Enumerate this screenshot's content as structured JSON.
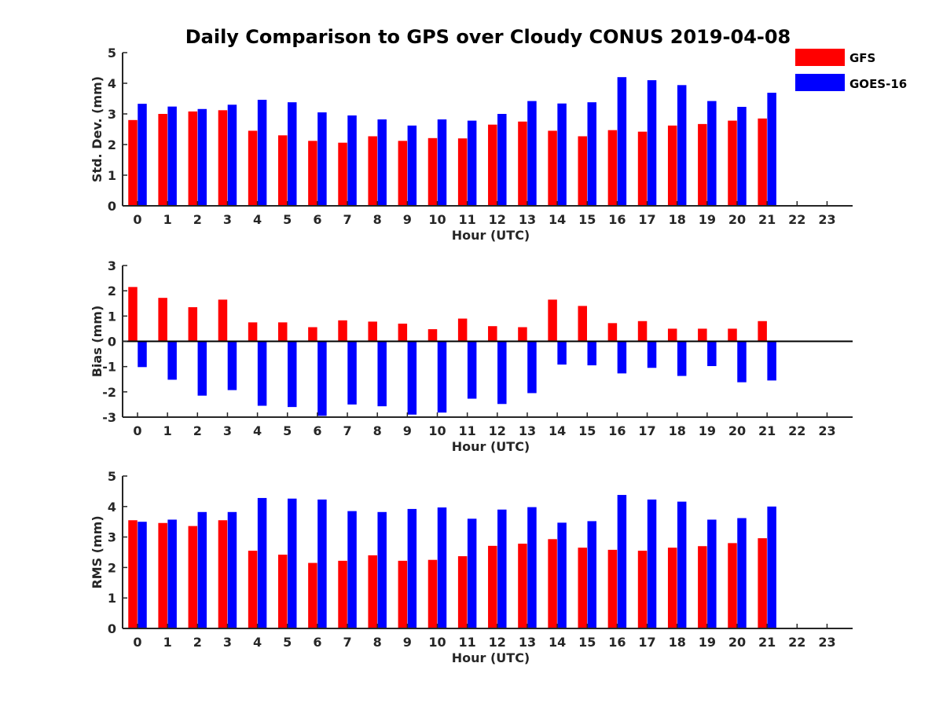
{
  "title": "Daily Comparison to GPS over Cloudy CONUS 2019-04-08",
  "colors": {
    "GFS": "#ff0000",
    "GOES-16": "#0000ff",
    "axis": "#262626"
  },
  "legend": {
    "placement": "top-right",
    "items": [
      "GFS",
      "GOES-16"
    ]
  },
  "chart_data": [
    {
      "type": "bar",
      "xlabel": "Hour (UTC)",
      "ylabel": "Std. Dev. (mm)",
      "ylim": [
        0,
        5
      ],
      "yticks": [
        0,
        1,
        2,
        3,
        4,
        5
      ],
      "categories": [
        "0",
        "1",
        "2",
        "3",
        "4",
        "5",
        "6",
        "7",
        "8",
        "9",
        "10",
        "11",
        "12",
        "13",
        "14",
        "15",
        "16",
        "17",
        "18",
        "19",
        "20",
        "21",
        "22",
        "23"
      ],
      "series": [
        {
          "name": "GFS",
          "values": [
            2.8,
            3.0,
            3.08,
            3.12,
            2.45,
            2.3,
            2.12,
            2.06,
            2.27,
            2.12,
            2.21,
            2.2,
            2.65,
            2.75,
            2.45,
            2.27,
            2.47,
            2.42,
            2.62,
            2.67,
            2.78,
            2.85,
            null,
            null
          ]
        },
        {
          "name": "GOES-16",
          "values": [
            3.33,
            3.24,
            3.16,
            3.3,
            3.46,
            3.38,
            3.05,
            2.95,
            2.82,
            2.62,
            2.82,
            2.78,
            3.0,
            3.42,
            3.34,
            3.38,
            4.2,
            4.1,
            3.94,
            3.42,
            3.23,
            3.69,
            null,
            null
          ]
        }
      ]
    },
    {
      "type": "bar",
      "xlabel": "Hour (UTC)",
      "ylabel": "Bias (mm)",
      "ylim": [
        -3,
        3
      ],
      "yticks": [
        -3,
        -2,
        -1,
        0,
        1,
        2,
        3
      ],
      "categories": [
        "0",
        "1",
        "2",
        "3",
        "4",
        "5",
        "6",
        "7",
        "8",
        "9",
        "10",
        "11",
        "12",
        "13",
        "14",
        "15",
        "16",
        "17",
        "18",
        "19",
        "20",
        "21",
        "22",
        "23"
      ],
      "series": [
        {
          "name": "GFS",
          "values": [
            2.15,
            1.72,
            1.35,
            1.65,
            0.75,
            0.75,
            0.56,
            0.83,
            0.78,
            0.7,
            0.48,
            0.9,
            0.6,
            0.56,
            1.65,
            1.4,
            0.72,
            0.8,
            0.5,
            0.5,
            0.5,
            0.8,
            null,
            null
          ]
        },
        {
          "name": "GOES-16",
          "values": [
            -1.02,
            -1.52,
            -2.15,
            -1.93,
            -2.55,
            -2.6,
            -2.95,
            -2.5,
            -2.57,
            -2.9,
            -2.82,
            -2.27,
            -2.48,
            -2.05,
            -0.92,
            -0.95,
            -1.27,
            -1.05,
            -1.37,
            -0.98,
            -1.62,
            -1.55,
            null,
            null
          ]
        }
      ]
    },
    {
      "type": "bar",
      "xlabel": "Hour (UTC)",
      "ylabel": "RMS (mm)",
      "ylim": [
        0,
        5
      ],
      "yticks": [
        0,
        1,
        2,
        3,
        4,
        5
      ],
      "categories": [
        "0",
        "1",
        "2",
        "3",
        "4",
        "5",
        "6",
        "7",
        "8",
        "9",
        "10",
        "11",
        "12",
        "13",
        "14",
        "15",
        "16",
        "17",
        "18",
        "19",
        "20",
        "21",
        "22",
        "23"
      ],
      "series": [
        {
          "name": "GFS",
          "values": [
            3.55,
            3.46,
            3.36,
            3.55,
            2.55,
            2.42,
            2.15,
            2.22,
            2.4,
            2.22,
            2.25,
            2.37,
            2.71,
            2.78,
            2.93,
            2.65,
            2.58,
            2.55,
            2.65,
            2.7,
            2.8,
            2.96,
            null,
            null
          ]
        },
        {
          "name": "GOES-16",
          "values": [
            3.5,
            3.57,
            3.82,
            3.82,
            4.28,
            4.26,
            4.23,
            3.85,
            3.82,
            3.92,
            3.97,
            3.6,
            3.9,
            3.98,
            3.47,
            3.52,
            4.38,
            4.23,
            4.16,
            3.57,
            3.62,
            4.0,
            null,
            null
          ]
        }
      ]
    }
  ]
}
